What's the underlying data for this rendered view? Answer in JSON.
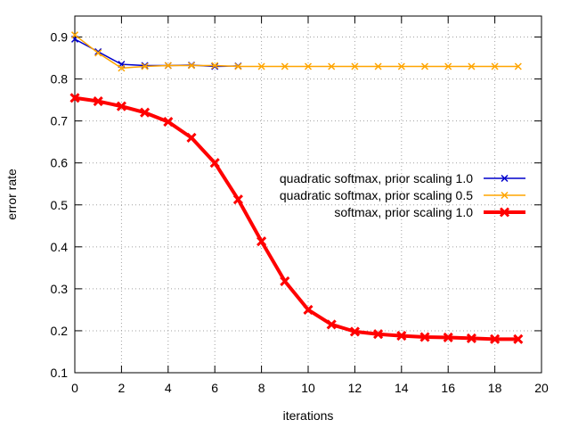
{
  "chart_data": {
    "type": "line",
    "title": "",
    "xlabel": "iterations",
    "ylabel": "error rate",
    "xlim": [
      0,
      20
    ],
    "ylim": [
      0.1,
      0.95
    ],
    "xticks": [
      0,
      2,
      4,
      6,
      8,
      10,
      12,
      14,
      16,
      18,
      20
    ],
    "yticks": [
      0.1,
      0.2,
      0.3,
      0.4,
      0.5,
      0.6,
      0.7,
      0.8,
      0.9
    ],
    "grid": true,
    "legend_position": "right",
    "series": [
      {
        "name": "quadratic softmax, prior scaling 1.0",
        "color": "#0000cc",
        "marker": "x",
        "x": [
          0,
          1,
          2,
          3,
          4,
          5,
          6,
          7
        ],
        "y": [
          0.895,
          0.865,
          0.835,
          0.832,
          0.832,
          0.833,
          0.83,
          0.831
        ]
      },
      {
        "name": "quadratic softmax, prior scaling 0.5",
        "color": "#ffa500",
        "marker": "x",
        "x": [
          0,
          1,
          2,
          3,
          4,
          5,
          6,
          7,
          8,
          9,
          10,
          11,
          12,
          13,
          14,
          15,
          16,
          17,
          18,
          19
        ],
        "y": [
          0.905,
          0.862,
          0.826,
          0.83,
          0.832,
          0.832,
          0.832,
          0.83,
          0.83,
          0.83,
          0.83,
          0.83,
          0.83,
          0.83,
          0.83,
          0.83,
          0.83,
          0.83,
          0.83,
          0.83
        ]
      },
      {
        "name": "softmax, prior scaling 1.0",
        "color": "#ff0000",
        "marker": "x",
        "thick": true,
        "x": [
          0,
          1,
          2,
          3,
          4,
          5,
          6,
          7,
          8,
          9,
          10,
          11,
          12,
          13,
          14,
          15,
          16,
          17,
          18,
          19
        ],
        "y": [
          0.755,
          0.747,
          0.735,
          0.72,
          0.698,
          0.66,
          0.6,
          0.513,
          0.413,
          0.318,
          0.25,
          0.215,
          0.198,
          0.192,
          0.188,
          0.185,
          0.184,
          0.182,
          0.18,
          0.18
        ]
      }
    ]
  }
}
